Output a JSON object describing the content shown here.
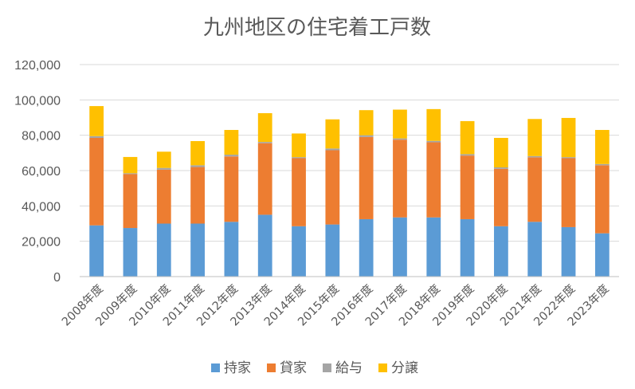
{
  "chart_data": {
    "type": "bar",
    "stacked": true,
    "title": "九州地区の住宅着工戸数",
    "xlabel": "",
    "ylabel": "",
    "ylim": [
      0,
      120000
    ],
    "yticks": [
      0,
      20000,
      40000,
      60000,
      80000,
      100000,
      120000
    ],
    "ytick_labels": [
      "0",
      "20,000",
      "40,000",
      "60,000",
      "80,000",
      "100,000",
      "120,000"
    ],
    "grid": true,
    "legend_position": "bottom",
    "categories": [
      "2008年度",
      "2009年度",
      "2010年度",
      "2011年度",
      "2012年度",
      "2013年度",
      "2014年度",
      "2015年度",
      "2016年度",
      "2017年度",
      "2018年度",
      "2019年度",
      "2020年度",
      "2021年度",
      "2022年度",
      "2023年度"
    ],
    "series": [
      {
        "name": "持家",
        "color": "#5b9bd5",
        "values": [
          29000,
          27500,
          30000,
          30000,
          31000,
          35000,
          28500,
          29500,
          32500,
          33500,
          33500,
          32500,
          28500,
          31000,
          28000,
          24500
        ]
      },
      {
        "name": "貸家",
        "color": "#ed7d31",
        "values": [
          49500,
          30500,
          30500,
          32000,
          37000,
          40500,
          38500,
          42000,
          46500,
          44000,
          42500,
          36000,
          32500,
          36500,
          39000,
          38500
        ]
      },
      {
        "name": "給与",
        "color": "#a5a5a5",
        "values": [
          1000,
          500,
          1000,
          1000,
          1000,
          700,
          600,
          1000,
          1000,
          700,
          800,
          800,
          800,
          700,
          600,
          700
        ]
      },
      {
        "name": "分譲",
        "color": "#ffc000",
        "values": [
          17000,
          9200,
          9200,
          13700,
          14000,
          16300,
          13400,
          16500,
          14200,
          16300,
          18000,
          18700,
          16700,
          21000,
          22200,
          19300
        ]
      }
    ]
  }
}
